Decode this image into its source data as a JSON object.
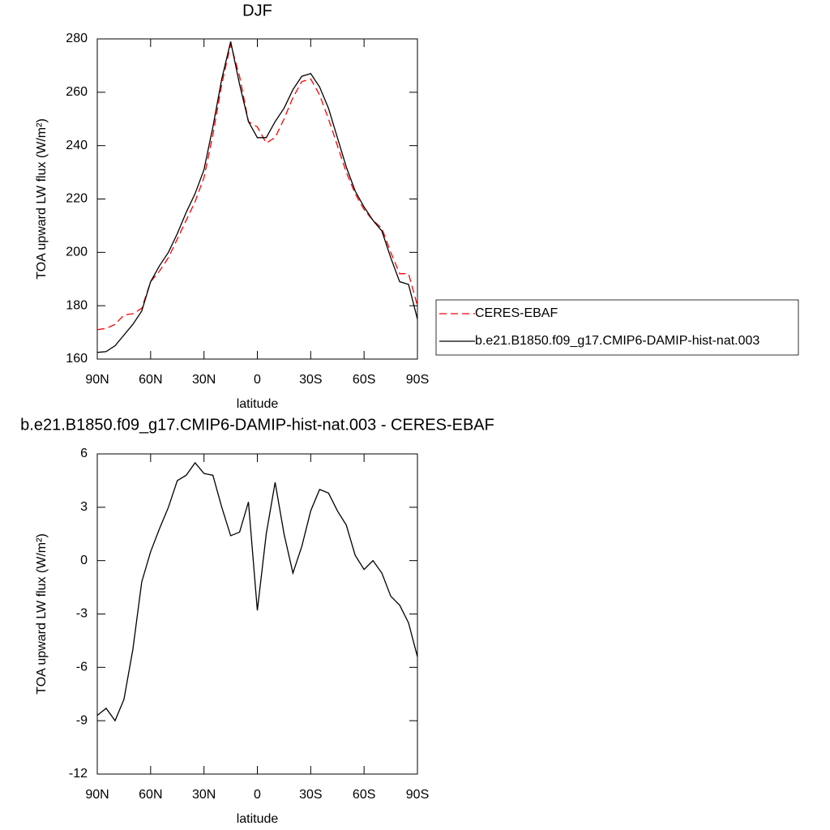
{
  "chart_data": [
    {
      "type": "line",
      "title": "DJF",
      "xlabel": "latitude",
      "ylabel": "TOA upward LW flux (W/m²)",
      "x": [
        90,
        85,
        80,
        75,
        70,
        65,
        60,
        55,
        50,
        45,
        40,
        35,
        30,
        25,
        20,
        15,
        10,
        5,
        0,
        -5,
        -10,
        -15,
        -20,
        -25,
        -30,
        -35,
        -40,
        -45,
        -50,
        -55,
        -60,
        -65,
        -70,
        -75,
        -80,
        -85,
        -90
      ],
      "series": [
        {
          "name": "CERES-EBAF",
          "color": "#ff0000",
          "dashed": true,
          "values": [
            171,
            171.5,
            173,
            176.5,
            177,
            179,
            189,
            193,
            198,
            205,
            212,
            219,
            228,
            244,
            263,
            278,
            266,
            249,
            247,
            241,
            243,
            250,
            258,
            264,
            265,
            259,
            250,
            240,
            230,
            222,
            216,
            212,
            209,
            200,
            192,
            192,
            180
          ]
        },
        {
          "name": "b.e21.B1850.f09_g17.CMIP6-DAMIP-hist-nat.003",
          "color": "#000000",
          "dashed": false,
          "values": [
            162.5,
            162.8,
            165,
            169,
            173,
            178,
            189,
            195,
            200,
            207,
            215,
            222,
            231,
            247,
            265,
            279,
            263,
            249,
            243,
            243,
            249,
            254,
            261,
            266,
            267,
            262,
            254,
            243,
            232,
            223,
            217,
            212,
            208,
            198,
            189,
            188,
            175
          ]
        }
      ],
      "xlim": [
        90,
        -90
      ],
      "xticks": [
        {
          "value": 90,
          "label": "90N"
        },
        {
          "value": 60,
          "label": "60N"
        },
        {
          "value": 30,
          "label": "30N"
        },
        0,
        {
          "value": -30,
          "label": "30S"
        },
        {
          "value": -60,
          "label": "60S"
        },
        {
          "value": -90,
          "label": "90S"
        }
      ],
      "ylim": [
        160,
        280
      ],
      "yticks": [
        160,
        180,
        200,
        220,
        240,
        260,
        280
      ],
      "legend": "right"
    },
    {
      "type": "line",
      "title": "b.e21.B1850.f09_g17.CMIP6-DAMIP-hist-nat.003 - CERES-EBAF",
      "xlabel": "latitude",
      "ylabel": "TOA upward LW flux (W/m²)",
      "x": [
        90,
        85,
        80,
        75,
        70,
        65,
        60,
        55,
        50,
        45,
        40,
        35,
        30,
        25,
        20,
        15,
        10,
        5,
        0,
        -5,
        -10,
        -15,
        -20,
        -25,
        -30,
        -35,
        -40,
        -45,
        -50,
        -55,
        -60,
        -65,
        -70,
        -75,
        -80,
        -85,
        -90
      ],
      "series": [
        {
          "color": "#000000",
          "dashed": false,
          "values": [
            -8.7,
            -8.3,
            -9.0,
            -7.8,
            -5,
            -1.2,
            0.5,
            1.8,
            3.0,
            4.5,
            4.8,
            5.5,
            4.9,
            4.8,
            3,
            1.4,
            1.6,
            3.3,
            -2.8,
            1.5,
            4.4,
            1.5,
            -0.7,
            0.8,
            2.8,
            4.0,
            3.8,
            2.8,
            2.0,
            0.3,
            -0.5,
            0,
            -0.7,
            -2.0,
            -2.5,
            -3.5,
            -5.4
          ]
        }
      ],
      "xlim": [
        90,
        -90
      ],
      "xticks": [
        {
          "value": 90,
          "label": "90N"
        },
        {
          "value": 60,
          "label": "60N"
        },
        {
          "value": 30,
          "label": "30N"
        },
        0,
        {
          "value": -30,
          "label": "30S"
        },
        {
          "value": -60,
          "label": "60S"
        },
        {
          "value": -90,
          "label": "90S"
        }
      ],
      "ylim": [
        -12,
        6
      ],
      "yticks": [
        -12,
        -9,
        -6,
        -3,
        0,
        3,
        6
      ]
    }
  ]
}
